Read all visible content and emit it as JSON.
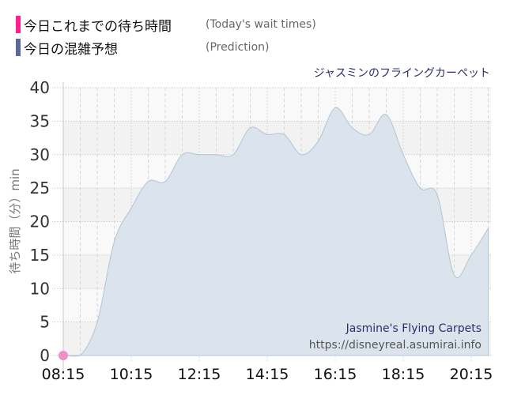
{
  "legend": [
    {
      "label_jp": "今日これまでの待ち時間",
      "label_en": "(Today's wait times)",
      "color": "#ff1f8e"
    },
    {
      "label_jp": "今日の混雑予想",
      "label_en": "(Prediction)",
      "color": "#5a6898"
    }
  ],
  "ride_title": "ジャスミンのフライングカーペット",
  "watermark": {
    "name": "Jasmine's Flying Carpets",
    "url": "https://disneyreal.asumirai.info"
  },
  "colors": {
    "prediction_fill": "#d9e3ec",
    "prediction_stroke": "#b4c4d2",
    "actual_point": "#f08ec6",
    "band_dark": "#f2f2f2",
    "band_light": "#f9f9f9"
  },
  "chart_data": {
    "type": "area",
    "title": "ジャスミンのフライングカーペット",
    "xlabel": "",
    "ylabel": "待ち時間（分）min",
    "ylim": [
      0,
      40
    ],
    "yticks": [
      0,
      5,
      10,
      15,
      20,
      25,
      30,
      35,
      40
    ],
    "xtick_labels": [
      "08:15",
      "10:15",
      "12:15",
      "14:15",
      "16:15",
      "18:15",
      "20:15"
    ],
    "grid": true,
    "legend_position": "top-left",
    "series": [
      {
        "name": "今日の混雑予想 (Prediction)",
        "type": "area",
        "x": [
          "08:15",
          "08:45",
          "09:15",
          "09:45",
          "10:15",
          "10:45",
          "11:15",
          "11:45",
          "12:15",
          "12:45",
          "13:15",
          "13:45",
          "14:15",
          "14:45",
          "15:15",
          "15:45",
          "16:15",
          "16:45",
          "17:15",
          "17:45",
          "18:15",
          "18:45",
          "19:15",
          "19:45",
          "20:15",
          "20:45"
        ],
        "values": [
          0,
          0,
          5,
          17,
          22,
          26,
          26,
          30,
          30,
          30,
          30,
          34,
          33,
          33,
          30,
          32,
          37,
          34,
          33,
          36,
          30,
          25,
          24,
          12,
          15,
          19
        ]
      },
      {
        "name": "今日これまでの待ち時間 (Today's wait times)",
        "type": "scatter",
        "x": [
          "08:15"
        ],
        "values": [
          0
        ]
      }
    ]
  }
}
